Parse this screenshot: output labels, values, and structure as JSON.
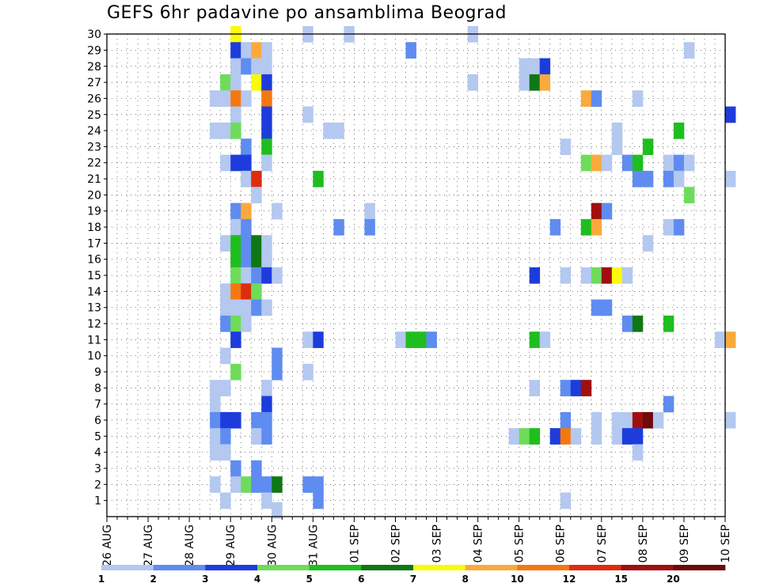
{
  "chart_data": {
    "type": "heatmap",
    "title": "GEFS 6hr padavine po ansamblima Beograd",
    "ylim": [
      1,
      30
    ],
    "y_ticks": [
      30,
      29,
      28,
      27,
      26,
      25,
      24,
      23,
      22,
      21,
      20,
      19,
      18,
      17,
      16,
      15,
      14,
      13,
      12,
      11,
      10,
      9,
      8,
      7,
      6,
      5,
      4,
      3,
      2,
      1
    ],
    "x_ticks": [
      "26 AUG",
      "27 AUG",
      "28 AUG",
      "29 AUG",
      "30 AUG",
      "31 AUG",
      "01 SEP",
      "02 SEP",
      "03 SEP",
      "04 SEP",
      "05 SEP",
      "06 SEP",
      "07 SEP",
      "08 SEP",
      "09 SEP",
      "10 SEP"
    ],
    "x_unit": "6h steps since 26 AUG 00",
    "grid": true,
    "legend": {
      "placement": "bottom",
      "labels": [
        "1",
        "2",
        "3",
        "4",
        "5",
        "6",
        "7",
        "8",
        "10",
        "12",
        "15",
        "20"
      ],
      "colors": [
        "#b4c8f0",
        "#5f8cf0",
        "#1e3cdc",
        "#6edc5a",
        "#1ebe1e",
        "#0f7814",
        "#fafa0a",
        "#faaa3c",
        "#f5780f",
        "#dc2d0f",
        "#a00f0f",
        "#6e0a0a"
      ]
    },
    "cells": [
      {
        "t": 12,
        "m": 30,
        "v": 7
      },
      {
        "t": 19,
        "m": 30,
        "v": 1
      },
      {
        "t": 23,
        "m": 30,
        "v": 1
      },
      {
        "t": 35,
        "m": 30,
        "v": 1
      },
      {
        "t": 12,
        "m": 29,
        "v": 3
      },
      {
        "t": 13,
        "m": 29,
        "v": 1
      },
      {
        "t": 14,
        "m": 29,
        "v": 8
      },
      {
        "t": 15,
        "m": 29,
        "v": 1
      },
      {
        "t": 29,
        "m": 29,
        "v": 2
      },
      {
        "t": 56,
        "m": 29,
        "v": 1
      },
      {
        "t": 12,
        "m": 28,
        "v": 1
      },
      {
        "t": 13,
        "m": 28,
        "v": 2
      },
      {
        "t": 14,
        "m": 28,
        "v": 1
      },
      {
        "t": 15,
        "m": 28,
        "v": 1
      },
      {
        "t": 40,
        "m": 28,
        "v": 1
      },
      {
        "t": 41,
        "m": 28,
        "v": 1
      },
      {
        "t": 42,
        "m": 28,
        "v": 3
      },
      {
        "t": 11,
        "m": 27,
        "v": 4
      },
      {
        "t": 12,
        "m": 27,
        "v": 1
      },
      {
        "t": 14,
        "m": 27,
        "v": 7.5
      },
      {
        "t": 15,
        "m": 27,
        "v": 3
      },
      {
        "t": 35,
        "m": 27,
        "v": 1
      },
      {
        "t": 40,
        "m": 27,
        "v": 1
      },
      {
        "t": 41,
        "m": 27,
        "v": 6
      },
      {
        "t": 42,
        "m": 27,
        "v": 9
      },
      {
        "t": 10,
        "m": 26,
        "v": 1
      },
      {
        "t": 11,
        "m": 26,
        "v": 1
      },
      {
        "t": 12,
        "m": 26,
        "v": 11
      },
      {
        "t": 13,
        "m": 26,
        "v": 1
      },
      {
        "t": 15,
        "m": 26,
        "v": 11
      },
      {
        "t": 46,
        "m": 26,
        "v": 9
      },
      {
        "t": 47,
        "m": 26,
        "v": 2
      },
      {
        "t": 51,
        "m": 26,
        "v": 1
      },
      {
        "t": 12,
        "m": 25,
        "v": 1
      },
      {
        "t": 15,
        "m": 25,
        "v": 3
      },
      {
        "t": 19,
        "m": 25,
        "v": 1
      },
      {
        "t": 60,
        "m": 25,
        "v": 3
      },
      {
        "t": 10,
        "m": 24,
        "v": 1
      },
      {
        "t": 11,
        "m": 24,
        "v": 1
      },
      {
        "t": 12,
        "m": 24,
        "v": 4
      },
      {
        "t": 15,
        "m": 24,
        "v": 3
      },
      {
        "t": 21,
        "m": 24,
        "v": 1
      },
      {
        "t": 22,
        "m": 24,
        "v": 1
      },
      {
        "t": 49,
        "m": 24,
        "v": 1
      },
      {
        "t": 55,
        "m": 24,
        "v": 5
      },
      {
        "t": 13,
        "m": 23,
        "v": 2
      },
      {
        "t": 15,
        "m": 23,
        "v": 5
      },
      {
        "t": 44,
        "m": 23,
        "v": 1
      },
      {
        "t": 49,
        "m": 23,
        "v": 1
      },
      {
        "t": 52,
        "m": 23,
        "v": 5
      },
      {
        "t": 11,
        "m": 22,
        "v": 1
      },
      {
        "t": 12,
        "m": 22,
        "v": 3
      },
      {
        "t": 13,
        "m": 22,
        "v": 3
      },
      {
        "t": 15,
        "m": 22,
        "v": 1
      },
      {
        "t": 46,
        "m": 22,
        "v": 4
      },
      {
        "t": 47,
        "m": 22,
        "v": 9
      },
      {
        "t": 48,
        "m": 22,
        "v": 1
      },
      {
        "t": 50,
        "m": 22,
        "v": 2
      },
      {
        "t": 51,
        "m": 22,
        "v": 5
      },
      {
        "t": 54,
        "m": 22,
        "v": 1
      },
      {
        "t": 55,
        "m": 22,
        "v": 2
      },
      {
        "t": 56,
        "m": 22,
        "v": 1
      },
      {
        "t": 13,
        "m": 21,
        "v": 1
      },
      {
        "t": 14,
        "m": 21,
        "v": 13
      },
      {
        "t": 20,
        "m": 21,
        "v": 5
      },
      {
        "t": 51,
        "m": 21,
        "v": 2
      },
      {
        "t": 52,
        "m": 21,
        "v": 2
      },
      {
        "t": 54,
        "m": 21,
        "v": 2
      },
      {
        "t": 55,
        "m": 21,
        "v": 1
      },
      {
        "t": 60,
        "m": 21,
        "v": 1
      },
      {
        "t": 14,
        "m": 20,
        "v": 1
      },
      {
        "t": 56,
        "m": 20,
        "v": 4
      },
      {
        "t": 12,
        "m": 19,
        "v": 2
      },
      {
        "t": 13,
        "m": 19,
        "v": 9
      },
      {
        "t": 16,
        "m": 19,
        "v": 1
      },
      {
        "t": 25,
        "m": 19,
        "v": 1
      },
      {
        "t": 47,
        "m": 19,
        "v": 17
      },
      {
        "t": 48,
        "m": 19,
        "v": 2
      },
      {
        "t": 12,
        "m": 18,
        "v": 1
      },
      {
        "t": 13,
        "m": 18,
        "v": 2
      },
      {
        "t": 22,
        "m": 18,
        "v": 2
      },
      {
        "t": 25,
        "m": 18,
        "v": 2
      },
      {
        "t": 43,
        "m": 18,
        "v": 2
      },
      {
        "t": 46,
        "m": 18,
        "v": 5
      },
      {
        "t": 47,
        "m": 18,
        "v": 9
      },
      {
        "t": 54,
        "m": 18,
        "v": 1
      },
      {
        "t": 55,
        "m": 18,
        "v": 2
      },
      {
        "t": 11,
        "m": 17,
        "v": 1
      },
      {
        "t": 12,
        "m": 17,
        "v": 5
      },
      {
        "t": 13,
        "m": 17,
        "v": 2
      },
      {
        "t": 14,
        "m": 17,
        "v": 6
      },
      {
        "t": 15,
        "m": 17,
        "v": 1
      },
      {
        "t": 52,
        "m": 17,
        "v": 1
      },
      {
        "t": 12,
        "m": 16,
        "v": 5
      },
      {
        "t": 13,
        "m": 16,
        "v": 2
      },
      {
        "t": 14,
        "m": 16,
        "v": 6
      },
      {
        "t": 15,
        "m": 16,
        "v": 1
      },
      {
        "t": 12,
        "m": 15,
        "v": 4
      },
      {
        "t": 13,
        "m": 15,
        "v": 1
      },
      {
        "t": 14,
        "m": 15,
        "v": 2
      },
      {
        "t": 15,
        "m": 15,
        "v": 3
      },
      {
        "t": 16,
        "m": 15,
        "v": 1
      },
      {
        "t": 41,
        "m": 15,
        "v": 3
      },
      {
        "t": 44,
        "m": 15,
        "v": 1
      },
      {
        "t": 46,
        "m": 15,
        "v": 1
      },
      {
        "t": 47,
        "m": 15,
        "v": 4
      },
      {
        "t": 48,
        "m": 15,
        "v": 17
      },
      {
        "t": 49,
        "m": 15,
        "v": 7.5
      },
      {
        "t": 50,
        "m": 15,
        "v": 1
      },
      {
        "t": 11,
        "m": 14,
        "v": 1
      },
      {
        "t": 12,
        "m": 14,
        "v": 11
      },
      {
        "t": 13,
        "m": 14,
        "v": 13
      },
      {
        "t": 14,
        "m": 14,
        "v": 4
      },
      {
        "t": 11,
        "m": 13,
        "v": 1
      },
      {
        "t": 12,
        "m": 13,
        "v": 1
      },
      {
        "t": 13,
        "m": 13,
        "v": 1
      },
      {
        "t": 14,
        "m": 13,
        "v": 2
      },
      {
        "t": 15,
        "m": 13,
        "v": 1
      },
      {
        "t": 47,
        "m": 13,
        "v": 2
      },
      {
        "t": 48,
        "m": 13,
        "v": 2
      },
      {
        "t": 11,
        "m": 12,
        "v": 2
      },
      {
        "t": 12,
        "m": 12,
        "v": 4
      },
      {
        "t": 13,
        "m": 12,
        "v": 1
      },
      {
        "t": 50,
        "m": 12,
        "v": 2
      },
      {
        "t": 51,
        "m": 12,
        "v": 6
      },
      {
        "t": 54,
        "m": 12,
        "v": 5
      },
      {
        "t": 12,
        "m": 11,
        "v": 3
      },
      {
        "t": 19,
        "m": 11,
        "v": 1
      },
      {
        "t": 20,
        "m": 11,
        "v": 3
      },
      {
        "t": 28,
        "m": 11,
        "v": 1
      },
      {
        "t": 29,
        "m": 11,
        "v": 5
      },
      {
        "t": 30,
        "m": 11,
        "v": 5
      },
      {
        "t": 31,
        "m": 11,
        "v": 2
      },
      {
        "t": 41,
        "m": 11,
        "v": 5
      },
      {
        "t": 42,
        "m": 11,
        "v": 1
      },
      {
        "t": 59,
        "m": 11,
        "v": 1
      },
      {
        "t": 60,
        "m": 11,
        "v": 9
      },
      {
        "t": 11,
        "m": 10,
        "v": 1
      },
      {
        "t": 16,
        "m": 10,
        "v": 2
      },
      {
        "t": 12,
        "m": 9,
        "v": 4
      },
      {
        "t": 16,
        "m": 9,
        "v": 2
      },
      {
        "t": 19,
        "m": 9,
        "v": 1
      },
      {
        "t": 10,
        "m": 8,
        "v": 1
      },
      {
        "t": 11,
        "m": 8,
        "v": 1
      },
      {
        "t": 15,
        "m": 8,
        "v": 1
      },
      {
        "t": 41,
        "m": 8,
        "v": 1
      },
      {
        "t": 44,
        "m": 8,
        "v": 2
      },
      {
        "t": 45,
        "m": 8,
        "v": 3
      },
      {
        "t": 46,
        "m": 8,
        "v": 15
      },
      {
        "t": 10,
        "m": 7,
        "v": 1
      },
      {
        "t": 15,
        "m": 7,
        "v": 3
      },
      {
        "t": 54,
        "m": 7,
        "v": 2
      },
      {
        "t": 10,
        "m": 6,
        "v": 2
      },
      {
        "t": 11,
        "m": 6,
        "v": 3
      },
      {
        "t": 12,
        "m": 6,
        "v": 3
      },
      {
        "t": 14,
        "m": 6,
        "v": 2
      },
      {
        "t": 15,
        "m": 6,
        "v": 2
      },
      {
        "t": 44,
        "m": 6,
        "v": 2
      },
      {
        "t": 47,
        "m": 6,
        "v": 1
      },
      {
        "t": 49,
        "m": 6,
        "v": 1
      },
      {
        "t": 50,
        "m": 6,
        "v": 1
      },
      {
        "t": 51,
        "m": 6,
        "v": 17
      },
      {
        "t": 52,
        "m": 6,
        "v": 20
      },
      {
        "t": 53,
        "m": 6,
        "v": 1
      },
      {
        "t": 60,
        "m": 6,
        "v": 1
      },
      {
        "t": 10,
        "m": 5,
        "v": 1
      },
      {
        "t": 11,
        "m": 5,
        "v": 2
      },
      {
        "t": 14,
        "m": 5,
        "v": 1
      },
      {
        "t": 15,
        "m": 5,
        "v": 2
      },
      {
        "t": 39,
        "m": 5,
        "v": 1
      },
      {
        "t": 40,
        "m": 5,
        "v": 4
      },
      {
        "t": 41,
        "m": 5,
        "v": 5
      },
      {
        "t": 43,
        "m": 5,
        "v": 3
      },
      {
        "t": 44,
        "m": 5,
        "v": 11
      },
      {
        "t": 45,
        "m": 5,
        "v": 1
      },
      {
        "t": 47,
        "m": 5,
        "v": 1
      },
      {
        "t": 49,
        "m": 5,
        "v": 1
      },
      {
        "t": 50,
        "m": 5,
        "v": 3
      },
      {
        "t": 51,
        "m": 5,
        "v": 3
      },
      {
        "t": 10,
        "m": 4,
        "v": 1
      },
      {
        "t": 11,
        "m": 4,
        "v": 1
      },
      {
        "t": 51,
        "m": 4,
        "v": 1
      },
      {
        "t": 12,
        "m": 3,
        "v": 2
      },
      {
        "t": 14,
        "m": 3,
        "v": 2
      },
      {
        "t": 10,
        "m": 2,
        "v": 1
      },
      {
        "t": 12,
        "m": 2,
        "v": 1
      },
      {
        "t": 13,
        "m": 2,
        "v": 4
      },
      {
        "t": 14,
        "m": 2,
        "v": 2
      },
      {
        "t": 15,
        "m": 2,
        "v": 2
      },
      {
        "t": 16,
        "m": 2,
        "v": 6
      },
      {
        "t": 19,
        "m": 2,
        "v": 2
      },
      {
        "t": 20,
        "m": 2,
        "v": 2
      },
      {
        "t": 11,
        "m": 1,
        "v": 1
      },
      {
        "t": 15,
        "m": 1,
        "v": 1
      },
      {
        "t": 20,
        "m": 1,
        "v": 2
      },
      {
        "t": 44,
        "m": 1,
        "v": 1
      },
      {
        "t": 16,
        "m": 0.4,
        "v": 1
      }
    ]
  }
}
